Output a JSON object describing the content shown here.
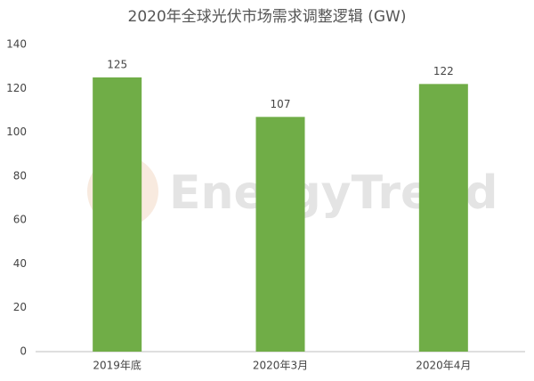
{
  "chart_data": {
    "type": "bar",
    "title": "2020年全球光伏市场需求调整逻辑 (GW)",
    "watermark": "EnergyTrend",
    "categories": [
      "2019年底",
      "2020年3月",
      "2020年4月"
    ],
    "values": [
      125,
      107,
      122
    ],
    "color": "#70ad47",
    "ylim": [
      0,
      140
    ],
    "yticks": [
      0,
      20,
      40,
      60,
      80,
      100,
      120,
      140
    ],
    "grid": false
  }
}
